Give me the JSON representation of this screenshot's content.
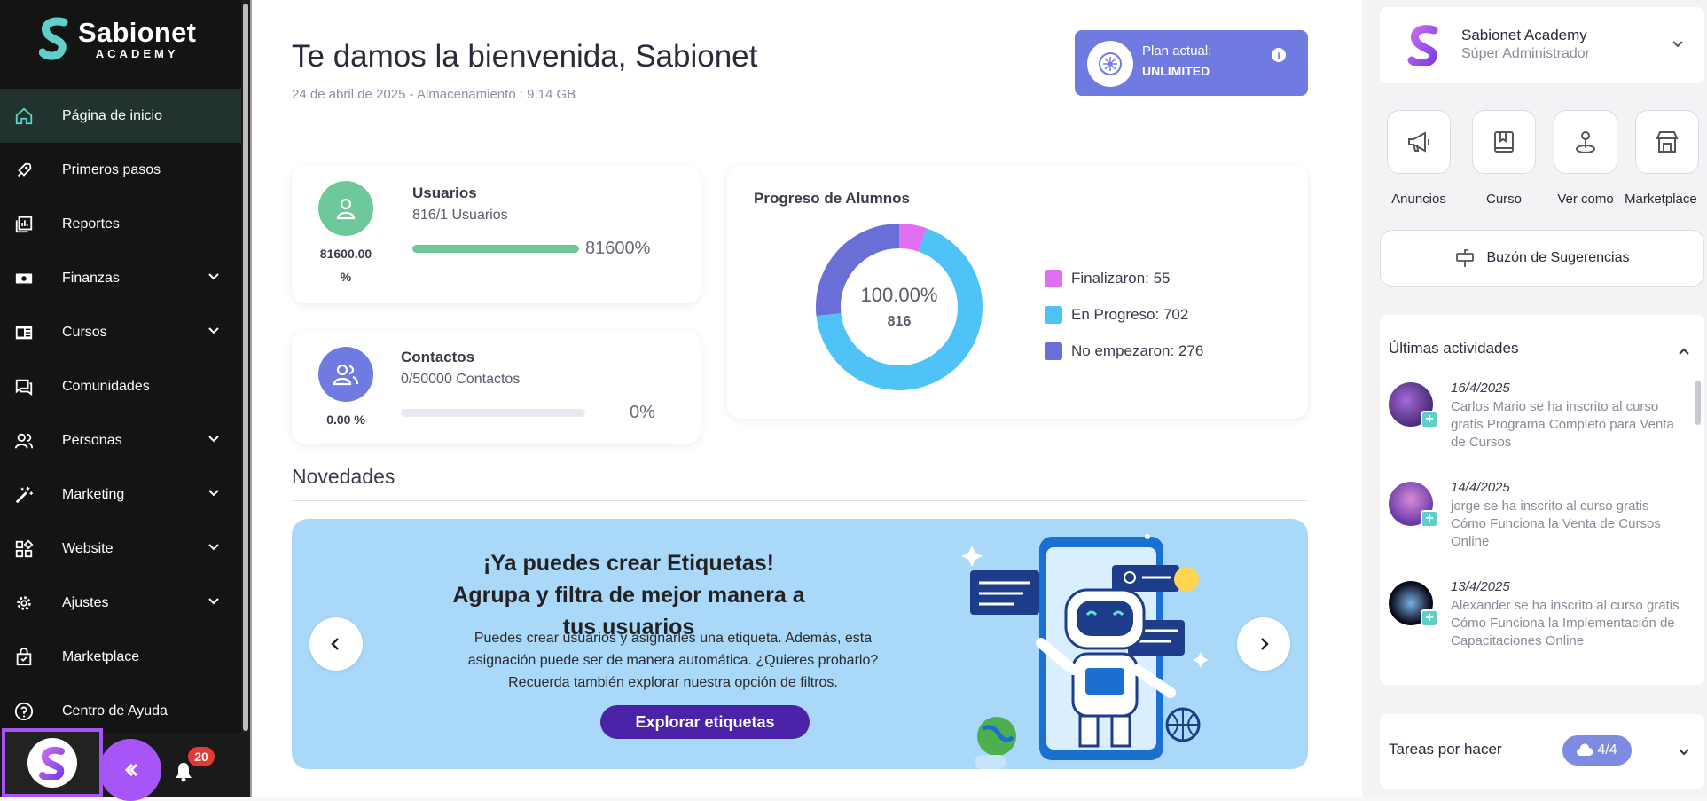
{
  "brand": {
    "name": "Sabionet",
    "sub": "ACADEMY"
  },
  "sidebar": {
    "items": [
      {
        "label": "Página de inicio"
      },
      {
        "label": "Primeros pasos"
      },
      {
        "label": "Reportes"
      },
      {
        "label": "Finanzas"
      },
      {
        "label": "Cursos"
      },
      {
        "label": "Comunidades"
      },
      {
        "label": "Personas"
      },
      {
        "label": "Marketing"
      },
      {
        "label": "Website"
      },
      {
        "label": "Ajustes"
      },
      {
        "label": "Marketplace"
      },
      {
        "label": "Centro de Ayuda"
      }
    ],
    "notifications": "20"
  },
  "header": {
    "welcome": "Te damos la bienvenida, Sabionet",
    "subline": "24 de abril de 2025 - Almacenamiento : 9.14 GB",
    "plan_label": "Plan actual:",
    "plan_value": "UNLIMITED",
    "plan_info": "i"
  },
  "users_card": {
    "title": "Usuarios",
    "sub": "816/1 Usuarios",
    "pct_line1": "81600.00",
    "pct_line2": "%",
    "bar_text": "81600%",
    "fill": 1.0
  },
  "contacts_card": {
    "title": "Contactos",
    "sub": "0/50000 Contactos",
    "pct": "0.00 %",
    "bar_text": "0%",
    "fill": 0.0
  },
  "chart_data": {
    "type": "pie",
    "title": "Progreso de Alumnos",
    "center_pct": "100.00%",
    "center_total": "816",
    "slices": [
      {
        "label": "Finalizaron: 55",
        "value": 55,
        "color": "#e06ef0"
      },
      {
        "label": "En Progreso: 702",
        "value": 702,
        "color": "#4fc3f7"
      },
      {
        "label": "No empezaron: 276",
        "value": 276,
        "color": "#6a6fd8"
      }
    ]
  },
  "news": {
    "heading": "Novedades",
    "banner_title": "¡Ya puedes crear Etiquetas! Agrupa y filtra de mejor manera a tus usuarios",
    "banner_text": "Puedes crear usuarios y asignarles una etiqueta. Además, esta asignación puede ser de manera automática. ¿Quieres probarlo? Recuerda también explorar nuestra opción de filtros.",
    "banner_button": "Explorar etiquetas"
  },
  "profile": {
    "name": "Sabionet Academy",
    "role": "Súper Administrador"
  },
  "quick_actions": [
    {
      "label": "Anuncios"
    },
    {
      "label": "Curso"
    },
    {
      "label": "Ver como"
    },
    {
      "label": "Marketplace"
    }
  ],
  "suggestions": "Buzón de Sugerencias",
  "activities": {
    "heading": "Últimas actividades",
    "items": [
      {
        "date": "16/4/2025",
        "text": "Carlos Mario se ha inscrito al curso gratis Programa Completo para Venta de Cursos"
      },
      {
        "date": "14/4/2025",
        "text": "jorge se ha inscrito al curso gratis Cómo Funciona la Venta de Cursos Online"
      },
      {
        "date": "13/4/2025",
        "text": "Alexander se ha inscrito al curso gratis Cómo Funciona la Implementación de Capacitaciones Online"
      }
    ]
  },
  "tasks": {
    "heading": "Tareas por hacer",
    "count": "4/4"
  },
  "colors": {
    "accent": "#a855f7",
    "green": "#6dc99b",
    "indigo": "#6f7be0",
    "banner": "#a9d8f8"
  }
}
